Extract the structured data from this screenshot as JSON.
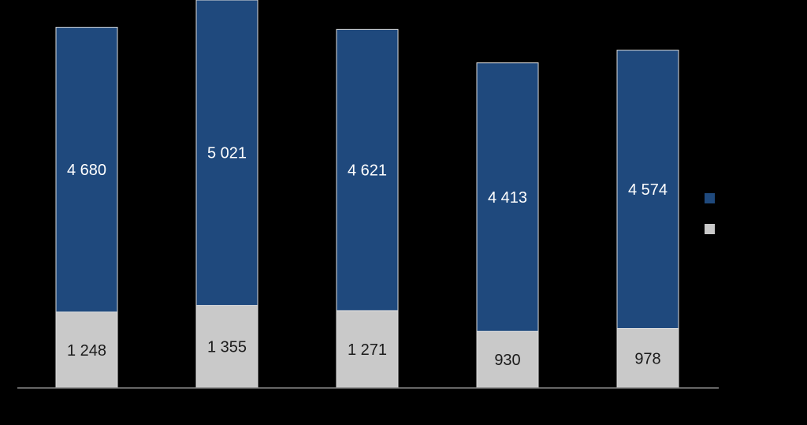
{
  "chart_data": {
    "type": "bar",
    "stacked": true,
    "categories": [
      "",
      "",
      "",
      "",
      ""
    ],
    "series": [
      {
        "values": [
          1248,
          1355,
          1271,
          930,
          978
        ],
        "labels": [
          "1 248",
          "1 355",
          "1 271",
          "930",
          "978"
        ],
        "color": "#c9c9c9"
      },
      {
        "values": [
          4680,
          5021,
          4621,
          4413,
          4574
        ],
        "labels": [
          "4 680",
          "5 021",
          "4 621",
          "4 413",
          "4 574"
        ],
        "color": "#1f497d"
      }
    ],
    "ylim": [
      0,
      6376
    ],
    "grid": false,
    "legend": "right",
    "legend_entries": [
      {
        "label": "",
        "color": "#1f497d"
      },
      {
        "label": "",
        "color": "#c9c9c9"
      }
    ],
    "colors": {
      "background": "#000000",
      "axis": "#888888",
      "bar_outline": "#dddddd"
    }
  }
}
